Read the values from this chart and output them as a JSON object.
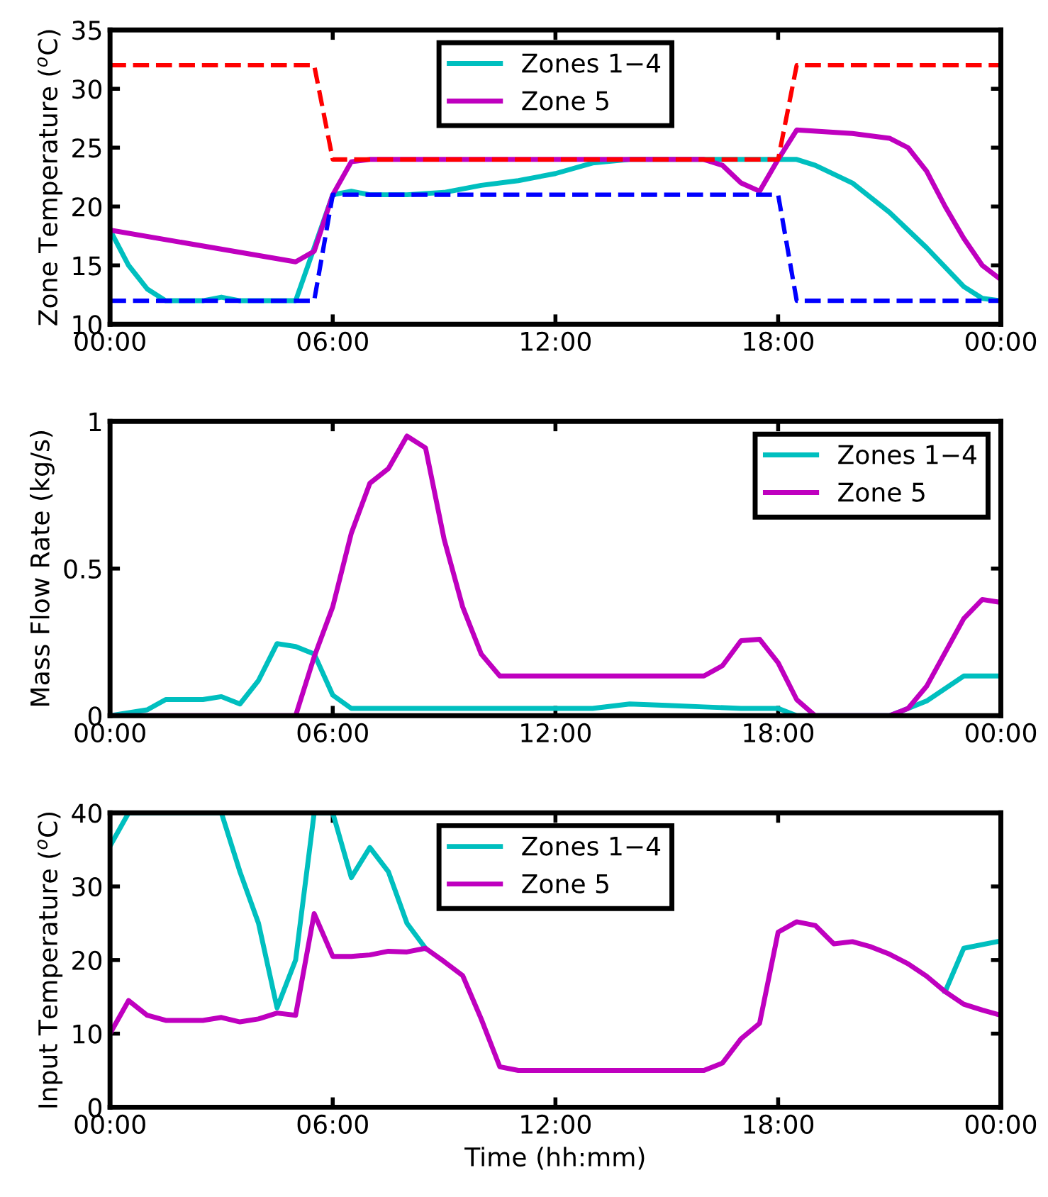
{
  "chart_data": [
    {
      "type": "line",
      "ylabel": "Zone Temperature ($^{o}$C)",
      "xlim": [
        0,
        24
      ],
      "xticks": [
        {
          "value": 0,
          "label": "00:00"
        },
        {
          "value": 6,
          "label": "06:00"
        },
        {
          "value": 12,
          "label": "12:00"
        },
        {
          "value": 18,
          "label": "18:00"
        },
        {
          "value": 24,
          "label": "00:00"
        }
      ],
      "ylim": [
        10,
        35
      ],
      "yticks": [
        10,
        15,
        20,
        25,
        30,
        35
      ],
      "grid": false,
      "legend": "top",
      "series": [
        {
          "name": "Zones 1−4",
          "color": "#00bfbf",
          "x": [
            0,
            0.5,
            1,
            1.5,
            2,
            2.5,
            3,
            3.5,
            4,
            4.5,
            5,
            5.5,
            6,
            6.5,
            7,
            8,
            9,
            10,
            11,
            12,
            13,
            14,
            15,
            16,
            17,
            18,
            18.5,
            19,
            20,
            21,
            22,
            23,
            23.5,
            24
          ],
          "values": [
            18,
            15,
            13,
            12,
            12,
            12,
            12.3,
            12,
            12,
            12,
            12,
            16.5,
            21,
            21.3,
            21,
            21,
            21.2,
            21.8,
            22.2,
            22.8,
            23.7,
            24,
            24,
            24,
            24,
            24,
            24,
            23.5,
            22,
            19.5,
            16.5,
            13.2,
            12.2,
            12
          ]
        },
        {
          "name": "Zone 5",
          "color": "#bf00bf",
          "x": [
            0,
            5,
            5.5,
            6,
            6.5,
            7,
            16,
            16.5,
            17,
            17.5,
            18,
            18.5,
            20,
            21,
            21.5,
            22,
            22.5,
            23,
            23.5,
            24
          ],
          "values": [
            18,
            15.3,
            16.2,
            21,
            23.8,
            24,
            24,
            23.5,
            22,
            21.3,
            24,
            26.5,
            26.2,
            25.8,
            25,
            23,
            20,
            17.3,
            15,
            13.8
          ]
        },
        {
          "color": "#ff0000",
          "line_style": "dashed",
          "x": [
            0,
            5.5,
            6,
            18,
            18.5,
            24
          ],
          "values": [
            32,
            32,
            24,
            24,
            32,
            32
          ]
        },
        {
          "color": "#0000ff",
          "line_style": "dashed",
          "x": [
            0,
            5.5,
            6,
            18,
            18.5,
            24
          ],
          "values": [
            12,
            12,
            21,
            21,
            12,
            12
          ]
        }
      ]
    },
    {
      "type": "line",
      "ylabel": "Mass Flow Rate (kg/s)",
      "xlim": [
        0,
        24
      ],
      "xticks": [
        {
          "value": 0,
          "label": "00:00"
        },
        {
          "value": 6,
          "label": "06:00"
        },
        {
          "value": 12,
          "label": "12:00"
        },
        {
          "value": 18,
          "label": "18:00"
        },
        {
          "value": 24,
          "label": "00:00"
        }
      ],
      "ylim": [
        0,
        1
      ],
      "yticks": [
        0,
        0.5,
        1
      ],
      "grid": false,
      "legend": "top right",
      "series": [
        {
          "name": "Zones 1−4",
          "color": "#00bfbf",
          "x": [
            0,
            1,
            1.5,
            2,
            2.5,
            3,
            3.5,
            4,
            4.5,
            5,
            5.5,
            6,
            6.5,
            13,
            14,
            15,
            16,
            17,
            18,
            18.5,
            21,
            22,
            23,
            24
          ],
          "values": [
            0,
            0.02,
            0.055,
            0.055,
            0.055,
            0.065,
            0.04,
            0.12,
            0.245,
            0.235,
            0.21,
            0.07,
            0.025,
            0.025,
            0.04,
            0.035,
            0.03,
            0.025,
            0.025,
            0,
            0,
            0.05,
            0.135,
            0.135
          ]
        },
        {
          "name": "Zone 5",
          "color": "#bf00bf",
          "x": [
            0,
            5,
            5.5,
            6,
            6.5,
            7,
            7.5,
            8,
            8.5,
            9,
            9.5,
            10,
            10.5,
            16,
            16.5,
            17,
            17.5,
            18,
            18.5,
            19,
            21,
            21.5,
            22,
            23,
            23.5,
            24
          ],
          "values": [
            0,
            0,
            0.2,
            0.37,
            0.62,
            0.79,
            0.84,
            0.95,
            0.91,
            0.6,
            0.37,
            0.21,
            0.135,
            0.135,
            0.17,
            0.255,
            0.26,
            0.18,
            0.055,
            0,
            0,
            0.025,
            0.1,
            0.33,
            0.395,
            0.385
          ]
        }
      ]
    },
    {
      "type": "line",
      "xlabel": "Time (hh:mm)",
      "ylabel": "Input Temperature ($^{o}$C)",
      "xlim": [
        0,
        24
      ],
      "xticks": [
        {
          "value": 0,
          "label": "00:00"
        },
        {
          "value": 6,
          "label": "06:00"
        },
        {
          "value": 12,
          "label": "12:00"
        },
        {
          "value": 18,
          "label": "18:00"
        },
        {
          "value": 24,
          "label": "00:00"
        }
      ],
      "ylim": [
        0,
        40
      ],
      "yticks": [
        0,
        10,
        20,
        30,
        40
      ],
      "grid": false,
      "legend": "top",
      "series": [
        {
          "name": "Zones 1−4",
          "color": "#00bfbf",
          "x": [
            0,
            0.5,
            3,
            3.5,
            4,
            4.5,
            5,
            5.5,
            6,
            6.5,
            7,
            7.5,
            8,
            8.5,
            9,
            9.5,
            10,
            10.5,
            11,
            16,
            16.5,
            17,
            17.5,
            18,
            18.5,
            19,
            19.5,
            20,
            20.5,
            21,
            21.5,
            22,
            22.5,
            23,
            24
          ],
          "values": [
            35.5,
            40,
            40,
            32,
            25,
            13.5,
            20,
            40,
            40,
            31.2,
            35.3,
            32,
            25,
            21.6,
            null,
            null,
            null,
            null,
            null,
            null,
            null,
            null,
            null,
            null,
            null,
            null,
            null,
            null,
            null,
            null,
            null,
            null,
            15.7,
            21.6,
            22.6
          ]
        },
        {
          "name": "Zone 5",
          "color": "#bf00bf",
          "x": [
            0,
            0.5,
            1,
            1.5,
            2,
            2.5,
            3,
            3.5,
            4,
            4.5,
            5,
            5.5,
            6,
            6.5,
            7,
            7.5,
            8,
            8.5,
            9,
            9.5,
            10,
            10.5,
            11,
            16,
            16.5,
            17,
            17.5,
            18,
            18.5,
            19,
            19.5,
            20,
            20.5,
            21,
            21.5,
            22,
            22.5,
            23,
            23.5,
            24
          ],
          "values": [
            10,
            14.5,
            12.5,
            11.8,
            11.8,
            11.8,
            12.2,
            11.6,
            12,
            12.8,
            12.5,
            26.3,
            20.5,
            20.5,
            20.7,
            21.2,
            21.1,
            21.6,
            19.8,
            17.9,
            12,
            5.5,
            5,
            5,
            6,
            9.3,
            11.4,
            23.8,
            25.2,
            24.7,
            22.2,
            22.5,
            21.8,
            20.8,
            19.5,
            17.8,
            15.7,
            14,
            13.2,
            12.5
          ]
        }
      ]
    }
  ]
}
